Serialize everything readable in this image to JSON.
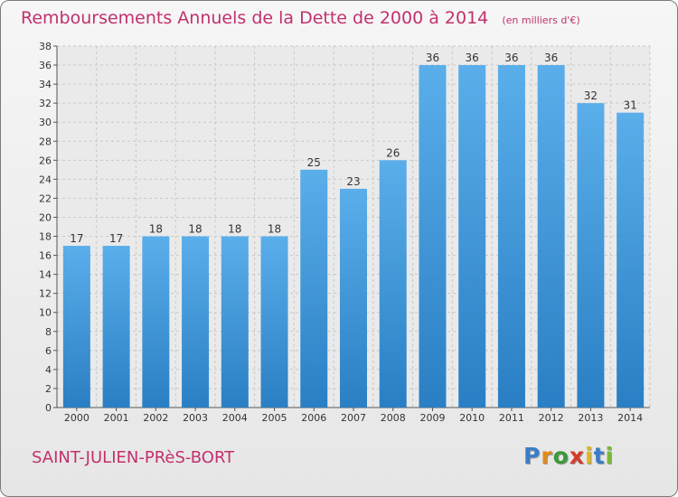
{
  "title": "Remboursements Annuels de la Dette de 2000 à 2014",
  "unit_note": "(en milliers d'€)",
  "town": "SAINT-JULIEN-PRèS-BORT",
  "logo": {
    "text": "Proxiti",
    "letters": [
      "P",
      "r",
      "o",
      "x",
      "i",
      "t",
      "i"
    ],
    "colors": [
      "#3a7dc9",
      "#e08a1c",
      "#3a9a3a",
      "#d63a2a",
      "#e0b81c",
      "#3a7dc9",
      "#7ab83a"
    ]
  },
  "colors": {
    "accent": "#c2306e",
    "bar_light": "#5aaeea",
    "bar_dark": "#2a7fc4"
  },
  "chart_data": {
    "type": "bar",
    "title": "Remboursements Annuels de la Dette de 2000 à 2014",
    "subtitle": "(en milliers d'€)",
    "categories": [
      "2000",
      "2001",
      "2002",
      "2003",
      "2004",
      "2005",
      "2006",
      "2007",
      "2008",
      "2009",
      "2010",
      "2011",
      "2012",
      "2013",
      "2014"
    ],
    "values": [
      17,
      17,
      18,
      18,
      18,
      18,
      25,
      23,
      26,
      36,
      36,
      36,
      36,
      32,
      31
    ],
    "ylim": [
      0,
      38
    ],
    "yticks": [
      0,
      2,
      4,
      6,
      8,
      10,
      12,
      14,
      16,
      18,
      20,
      22,
      24,
      26,
      28,
      30,
      32,
      34,
      36,
      38
    ],
    "grid": true,
    "xlabel": "",
    "ylabel": ""
  }
}
